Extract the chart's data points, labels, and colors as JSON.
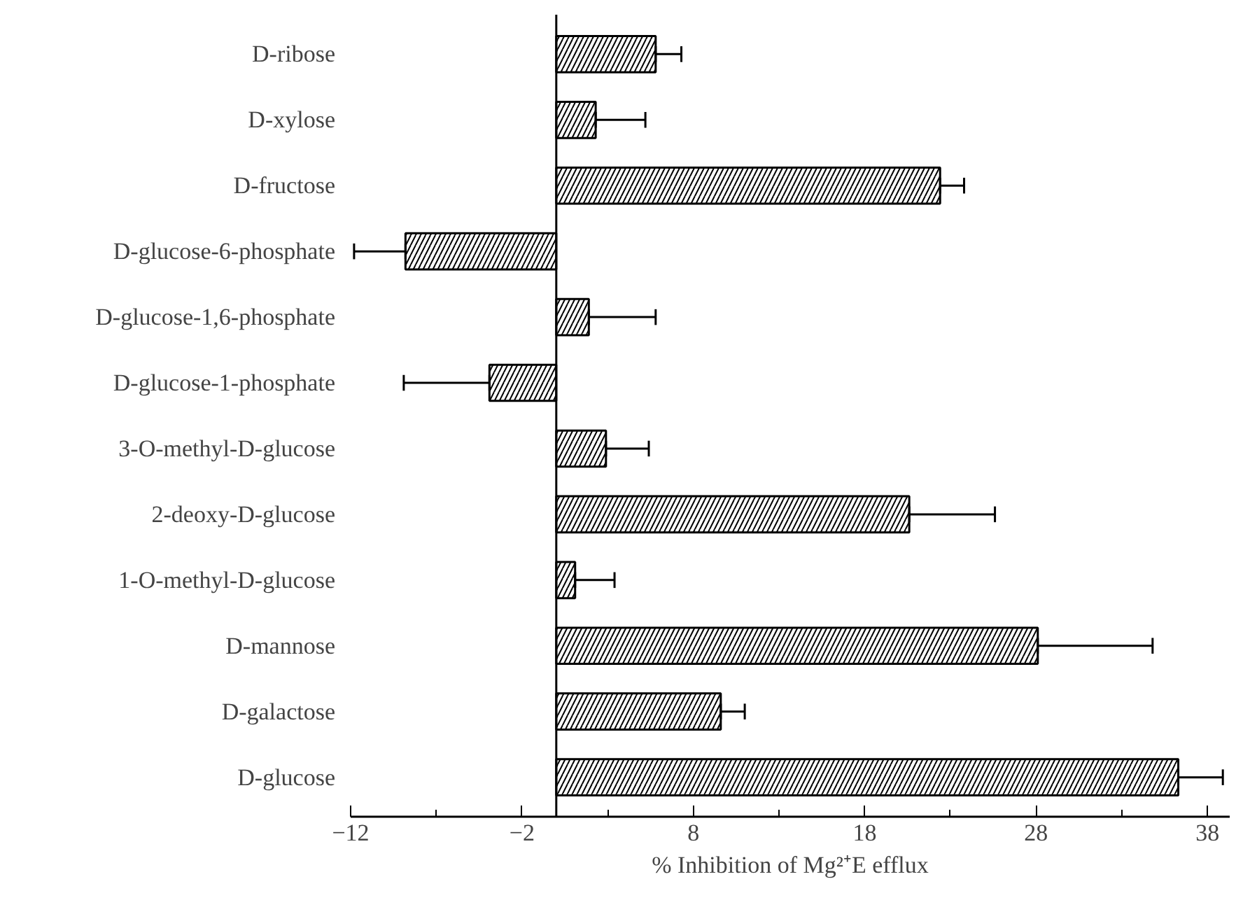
{
  "chart_data": {
    "type": "bar",
    "orientation": "horizontal",
    "xlabel": "% Inhibition of Mg²⁺E efflux",
    "categories": [
      "D-ribose",
      "D-xylose",
      "D-fructose",
      "D-glucose-6-phosphate",
      "D-glucose-1,6-phosphate",
      "D-glucose-1-phosphate",
      "3-O-methyl-D-glucose",
      "2-deoxy-D-glucose",
      "1-O-methyl-D-glucose",
      "D-mannose",
      "D-galactose",
      "D-glucose"
    ],
    "values": [
      5.8,
      2.3,
      22.4,
      -8.8,
      1.9,
      -3.9,
      2.9,
      20.6,
      1.1,
      28.1,
      9.6,
      36.3
    ],
    "errors": [
      [
        5.8,
        7.3
      ],
      [
        2.3,
        5.2
      ],
      [
        22.4,
        23.8
      ],
      [
        -11.8,
        -8.8
      ],
      [
        1.9,
        5.8
      ],
      [
        -8.9,
        -3.9
      ],
      [
        2.9,
        5.4
      ],
      [
        20.6,
        25.6
      ],
      [
        1.1,
        3.4
      ],
      [
        28.1,
        34.8
      ],
      [
        9.6,
        11.0
      ],
      [
        36.3,
        38.9
      ]
    ],
    "color": "#000000",
    "xlim": [
      -12,
      39.3
    ],
    "xticks": [
      -12,
      -2,
      8,
      18,
      28,
      38
    ],
    "grid": false
  }
}
